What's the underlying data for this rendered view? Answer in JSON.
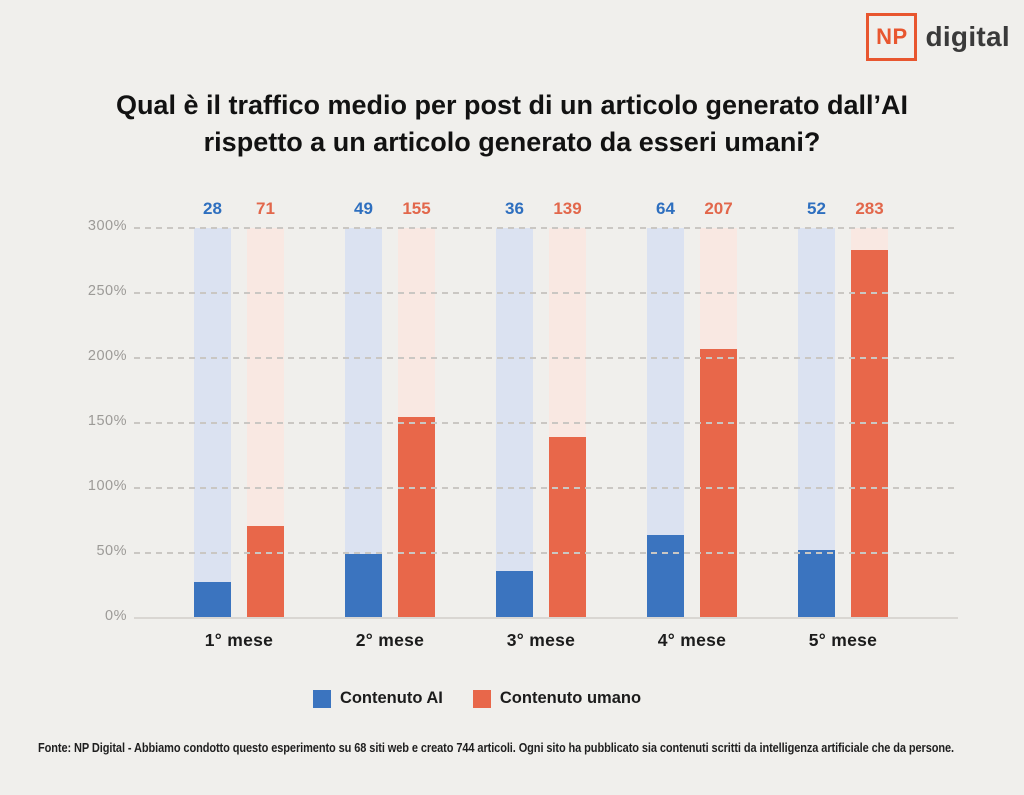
{
  "logo": {
    "mark": "NP",
    "text": "digital",
    "accent_color": "#e8562f"
  },
  "title": {
    "line1": "Qual è il traffico medio per post di un articolo generato dall’AI",
    "line2": "rispetto a un articolo generato da esseri umani?"
  },
  "legend": {
    "ai": "Contenuto AI",
    "human": "Contenuto umano"
  },
  "footer": {
    "text": "Fonte: NP Digital - Abbiamo condotto questo esperimento su 68 siti web e creato 744 articoli. Ogni sito ha pubblicato sia contenuti scritti da intelligenza artificiale che da persone."
  },
  "chart_data": {
    "type": "bar",
    "categories": [
      "1° mese",
      "2° mese",
      "3° mese",
      "4° mese",
      "5° mese"
    ],
    "series": [
      {
        "name": "Contenuto AI",
        "values": [
          28,
          49,
          36,
          64,
          52
        ],
        "color": "#3b74bf",
        "track_color": "#dbe2f1",
        "label_color": "#2e6fbf"
      },
      {
        "name": "Contenuto umano",
        "values": [
          71,
          155,
          139,
          207,
          283
        ],
        "color": "#e8674a",
        "track_color": "#f9e8e2",
        "label_color": "#e2674b"
      }
    ],
    "ylabel": "",
    "xlabel": "",
    "ylim": [
      0,
      300
    ],
    "yticks": [
      "0%",
      "50%",
      "100%",
      "150%",
      "200%",
      "250%",
      "300%"
    ],
    "grid": "dashed horizontal",
    "legend_position": "bottom",
    "value_labels": "above bar tracks"
  }
}
